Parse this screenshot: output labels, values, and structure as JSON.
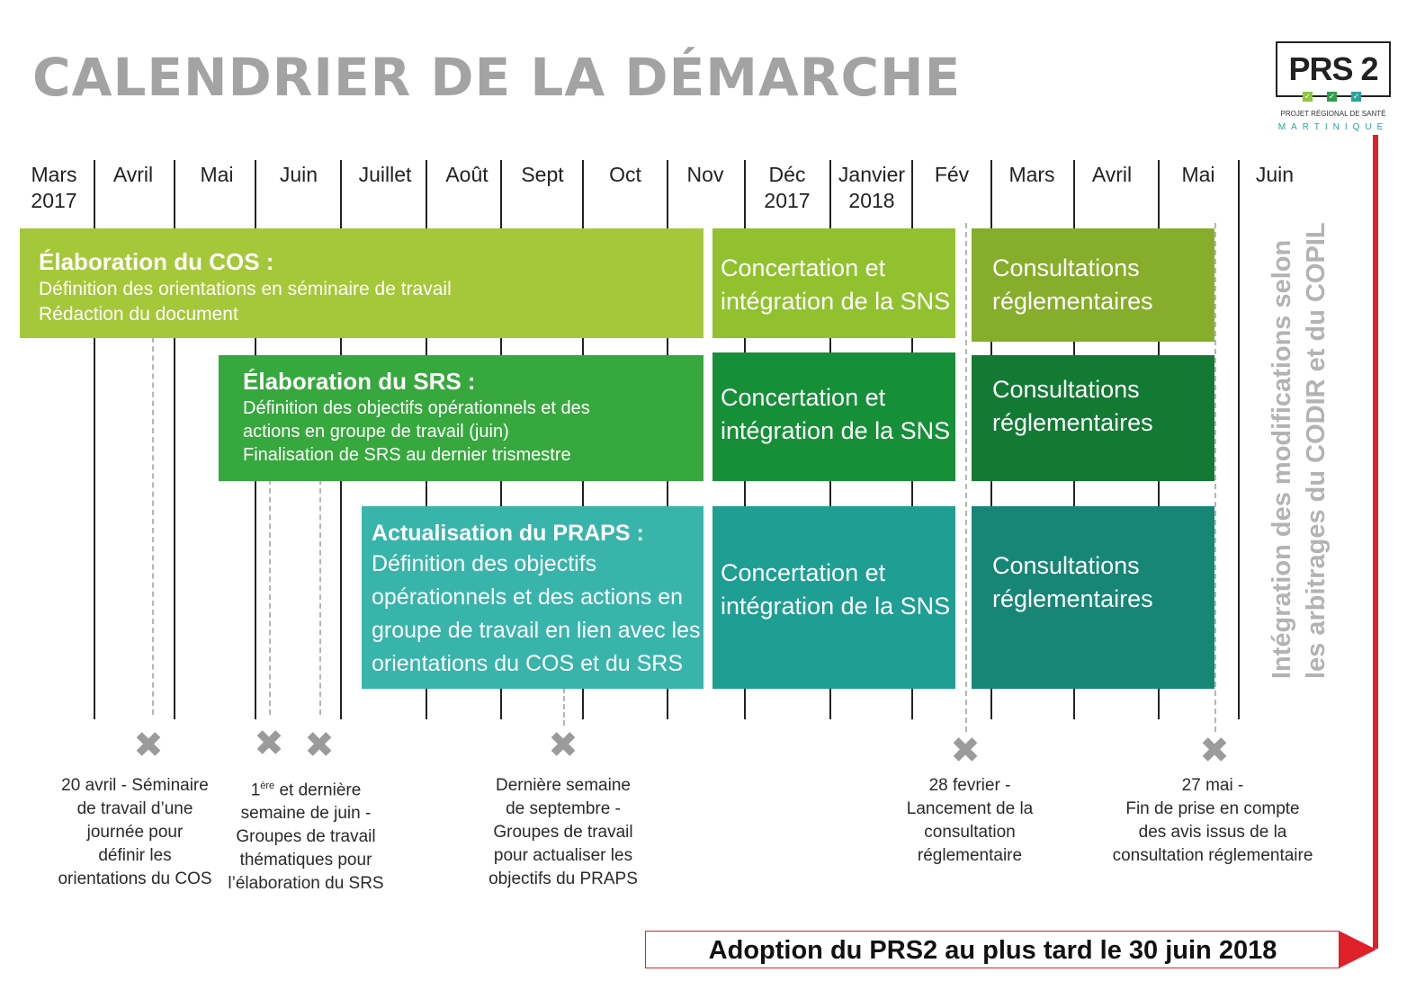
{
  "title": "CALENDRIER DE LA DÉMARCHE",
  "logo": {
    "name": "PRS 2",
    "subtitle": "PROJET RÉGIONAL DE SANTÉ",
    "region": "MARTINIQUE"
  },
  "months": [
    "Mars\n2017",
    "Avril",
    "Mai",
    "Juin",
    "Juillet",
    "Août",
    "Sept",
    "Oct",
    "Nov",
    "Déc\n2017",
    "Janvier\n2018",
    "Fév",
    "Mars",
    "Avril",
    "Mai",
    "Juin"
  ],
  "rows": [
    {
      "main_title": "Élaboration du COS :",
      "main_lines": [
        "Définition des orientations en séminaire de travail",
        "Rédaction du document"
      ],
      "concertation": "Concertation et\nintégration de la SNS",
      "consultation": "Consultations\nréglementaires",
      "colors": {
        "main": "#a5c83a",
        "concertation": "#92c130",
        "consultation": "#86ad2b"
      }
    },
    {
      "main_title": "Élaboration du SRS :",
      "main_lines": [
        "Définition des objectifs opérationnels et des",
        "actions en groupe de travail (juin)",
        "Finalisation de SRS au dernier trismestre"
      ],
      "concertation": "Concertation et\nintégration de la SNS",
      "consultation": "Consultations\nréglementaires",
      "colors": {
        "main": "#36a83d",
        "concertation": "#168f38",
        "consultation": "#127a33"
      }
    },
    {
      "main_title": "Actualisation du PRAPS :",
      "main_lines": [
        "Définition des objectifs",
        "opérationnels et des actions en",
        "groupe de travail en lien avec les",
        "orientations du COS et du SRS"
      ],
      "concertation": "Concertation et\nintégration de la SNS",
      "consultation": "Consultations\nréglementaires",
      "colors": {
        "main": "#38b4ab",
        "concertation": "#1f9e93",
        "consultation": "#178676"
      }
    }
  ],
  "milestones": [
    {
      "text": "20 avril - Séminaire\nde travail d’une\njournée pour\ndéfinir les\norientations du COS"
    },
    {
      "text_sup": "ère",
      "text_pre": "1",
      "text": " et dernière\nsemaine de juin -\nGroupes de travail\nthématiques pour\nl’élaboration du SRS"
    },
    {
      "text": "Dernière semaine\nde septembre -\nGroupes de travail\npour actualiser les\nobjectifs du PRAPS"
    },
    {
      "text": "28 fevrier -\nLancement de la\nconsultation\nréglementaire"
    },
    {
      "text": "27 mai -\nFin de prise en compte\ndes avis issus de la\nconsultation réglementaire"
    }
  ],
  "vertical_note": "Intégration des modifications selon\nles arbitrages du CODIR et du COPIL",
  "adoption": "Adoption du PRS2 au plus tard le 30 juin 2018",
  "accent_color": "#e0202a"
}
